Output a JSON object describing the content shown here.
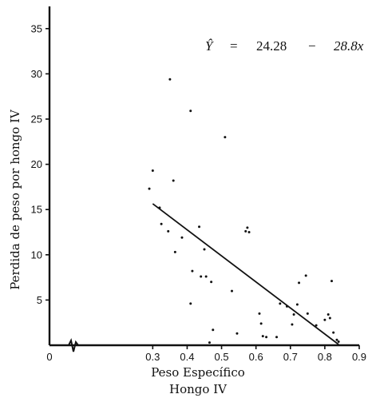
{
  "chart_data": {
    "type": "scatter",
    "title": "",
    "xlabel_line1": "Peso Específico",
    "xlabel_line2": "Hongo IV",
    "ylabel": "Perdida de peso por hongo IV",
    "xlim": [
      0,
      0.9
    ],
    "ylim": [
      0,
      37
    ],
    "x_ticks": [
      "0",
      "0.3",
      "0.4",
      "0.5",
      "0.6",
      "0.7",
      "0.8",
      "0.9"
    ],
    "x_tick_values": [
      0,
      0.3,
      0.4,
      0.5,
      0.6,
      0.7,
      0.8,
      0.9
    ],
    "y_ticks": [
      "5",
      "10",
      "15",
      "20",
      "25",
      "30",
      "35"
    ],
    "y_tick_values": [
      5,
      10,
      15,
      20,
      25,
      30,
      35
    ],
    "axis_break": true,
    "equation": {
      "lhs": "Ŷ",
      "equals": "=",
      "intercept": "24.28",
      "minus": "−",
      "slope_term": "28.8x"
    },
    "regression_line": {
      "intercept": 24.28,
      "slope": -28.8,
      "x_start": 0.3,
      "x_end": 0.84
    },
    "points": [
      {
        "x": 0.29,
        "y": 17.3
      },
      {
        "x": 0.3,
        "y": 19.3
      },
      {
        "x": 0.32,
        "y": 15.2
      },
      {
        "x": 0.325,
        "y": 13.4
      },
      {
        "x": 0.345,
        "y": 12.6
      },
      {
        "x": 0.35,
        "y": 29.4
      },
      {
        "x": 0.36,
        "y": 18.2
      },
      {
        "x": 0.365,
        "y": 10.3
      },
      {
        "x": 0.385,
        "y": 11.9
      },
      {
        "x": 0.41,
        "y": 25.9
      },
      {
        "x": 0.41,
        "y": 4.6
      },
      {
        "x": 0.415,
        "y": 8.2
      },
      {
        "x": 0.435,
        "y": 13.1
      },
      {
        "x": 0.44,
        "y": 7.6
      },
      {
        "x": 0.45,
        "y": 10.6
      },
      {
        "x": 0.455,
        "y": 7.6
      },
      {
        "x": 0.47,
        "y": 7.0
      },
      {
        "x": 0.475,
        "y": 1.7
      },
      {
        "x": 0.465,
        "y": 0.3
      },
      {
        "x": 0.51,
        "y": 23.0
      },
      {
        "x": 0.53,
        "y": 6.0
      },
      {
        "x": 0.545,
        "y": 1.3
      },
      {
        "x": 0.57,
        "y": 12.6
      },
      {
        "x": 0.575,
        "y": 13.0
      },
      {
        "x": 0.58,
        "y": 12.5
      },
      {
        "x": 0.61,
        "y": 3.5
      },
      {
        "x": 0.615,
        "y": 2.4
      },
      {
        "x": 0.62,
        "y": 1.0
      },
      {
        "x": 0.63,
        "y": 0.9
      },
      {
        "x": 0.66,
        "y": 0.9
      },
      {
        "x": 0.67,
        "y": 4.6
      },
      {
        "x": 0.69,
        "y": 4.3
      },
      {
        "x": 0.705,
        "y": 2.3
      },
      {
        "x": 0.71,
        "y": 3.4
      },
      {
        "x": 0.72,
        "y": 4.5
      },
      {
        "x": 0.725,
        "y": 6.9
      },
      {
        "x": 0.745,
        "y": 7.7
      },
      {
        "x": 0.75,
        "y": 3.5
      },
      {
        "x": 0.775,
        "y": 2.2
      },
      {
        "x": 0.8,
        "y": 2.8
      },
      {
        "x": 0.81,
        "y": 3.4
      },
      {
        "x": 0.815,
        "y": 3.0
      },
      {
        "x": 0.82,
        "y": 7.1
      },
      {
        "x": 0.825,
        "y": 1.4
      },
      {
        "x": 0.835,
        "y": 0.6
      },
      {
        "x": 0.84,
        "y": 0.4
      }
    ]
  }
}
